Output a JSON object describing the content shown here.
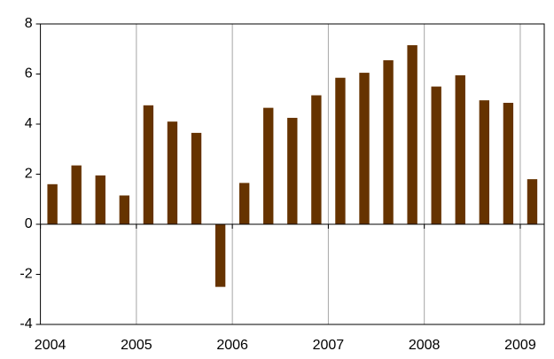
{
  "chart_data": {
    "type": "bar",
    "categories": [
      null,
      null,
      null,
      null,
      null,
      null,
      null,
      null,
      null,
      null,
      null,
      null,
      null,
      null,
      null,
      null,
      null,
      null,
      null,
      null,
      null
    ],
    "values": [
      1.6,
      2.35,
      1.95,
      1.15,
      4.75,
      4.1,
      3.65,
      -2.5,
      1.65,
      4.65,
      4.25,
      5.15,
      5.85,
      6.05,
      6.55,
      7.15,
      5.5,
      5.95,
      4.95,
      4.85,
      1.8
    ],
    "color": "#663300",
    "xlim": [
      2004,
      2009.25
    ],
    "xticks": [
      2004,
      2005,
      2006,
      2007,
      2008,
      2009
    ],
    "ylim": [
      -4,
      8
    ],
    "yticks": [
      -4,
      -2,
      0,
      2,
      4,
      6,
      8
    ],
    "grid": true
  }
}
